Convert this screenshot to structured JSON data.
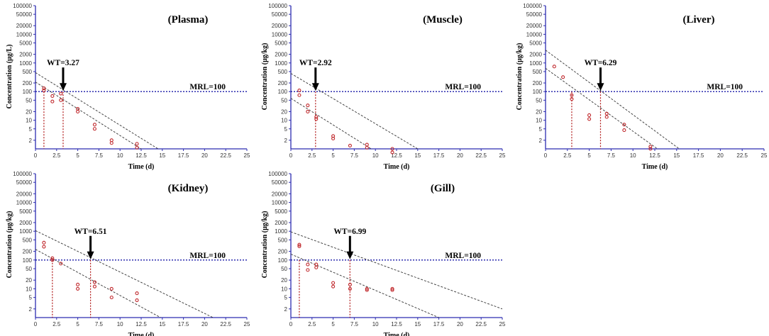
{
  "chart_data": [
    {
      "type": "scatter",
      "title": "(Plasma)",
      "xlabel": "Time (d)",
      "ylabel": "Concentration (μg/L)",
      "wt_label": "WT=3.27",
      "wt": 3.27,
      "mrl_label": "MRL=100",
      "mrl": 100,
      "t_start": 1,
      "points": [
        [
          1,
          130
        ],
        [
          1,
          110
        ],
        [
          2,
          70
        ],
        [
          2,
          45
        ],
        [
          3,
          85
        ],
        [
          3,
          50
        ],
        [
          5,
          25
        ],
        [
          5,
          20
        ],
        [
          7,
          7
        ],
        [
          7,
          5
        ],
        [
          9,
          2
        ],
        [
          9,
          1.6
        ],
        [
          12,
          1.5
        ],
        [
          12,
          1.1
        ]
      ],
      "lines": [
        [
          [
            0,
            460
          ],
          [
            14.5,
            1
          ]
        ],
        [
          [
            0,
            215
          ],
          [
            12.5,
            1
          ]
        ]
      ]
    },
    {
      "type": "scatter",
      "title": "(Muscle)",
      "xlabel": "Time (d)",
      "ylabel": "Concentration (μg/kg)",
      "wt_label": "WT=2.92",
      "wt": 2.92,
      "mrl_label": "MRL=100",
      "mrl": 100,
      "t_start": null,
      "points": [
        [
          1,
          110
        ],
        [
          1,
          75
        ],
        [
          2,
          33
        ],
        [
          2,
          20
        ],
        [
          3,
          13
        ],
        [
          3,
          11
        ],
        [
          5,
          2.8
        ],
        [
          5,
          2.3
        ],
        [
          7,
          1.3
        ],
        [
          9,
          1.4
        ],
        [
          9,
          1.1
        ],
        [
          12,
          1.0
        ],
        [
          12,
          0.75
        ]
      ],
      "lines": [
        [
          [
            0,
            430
          ],
          [
            15,
            1
          ]
        ],
        [
          [
            0,
            58
          ],
          [
            9.5,
            1
          ]
        ]
      ]
    },
    {
      "type": "scatter",
      "title": "(Liver)",
      "xlabel": "Time (d)",
      "ylabel": "Concentration (μg/kg)",
      "wt_label": "WT=6.29",
      "wt": 6.29,
      "mrl_label": "MRL=100",
      "mrl": 100,
      "t_start": 3,
      "points": [
        [
          1,
          750
        ],
        [
          2,
          320
        ],
        [
          3,
          75
        ],
        [
          3,
          55
        ],
        [
          5,
          15
        ],
        [
          5,
          11
        ],
        [
          7,
          17
        ],
        [
          7,
          13
        ],
        [
          9,
          7
        ],
        [
          9,
          4.5
        ],
        [
          12,
          1.2
        ],
        [
          12,
          1.0
        ]
      ],
      "lines": [
        [
          [
            0,
            2800
          ],
          [
            15.3,
            1
          ]
        ],
        [
          [
            0,
            650
          ],
          [
            12.8,
            1
          ]
        ]
      ]
    },
    {
      "type": "scatter",
      "title": "(Kidney)",
      "xlabel": "Time (d)",
      "ylabel": "Concentration (μg/kg)",
      "wt_label": "WT=6.51",
      "wt": 6.51,
      "mrl_label": "MRL=100",
      "mrl": 100,
      "t_start": 2,
      "points": [
        [
          1,
          400
        ],
        [
          1,
          290
        ],
        [
          2,
          115
        ],
        [
          2,
          100
        ],
        [
          3,
          75
        ],
        [
          5,
          14
        ],
        [
          5,
          10
        ],
        [
          7,
          17
        ],
        [
          7,
          12
        ],
        [
          9,
          10
        ],
        [
          9,
          5
        ],
        [
          12,
          7
        ],
        [
          12,
          4
        ]
      ],
      "lines": [
        [
          [
            0,
            1050
          ],
          [
            21,
            1
          ]
        ],
        [
          [
            0,
            235
          ],
          [
            14.8,
            1
          ]
        ]
      ]
    },
    {
      "type": "scatter",
      "title": "(Gill)",
      "xlabel": "Time (d)",
      "ylabel": "Concentration (μg/kg)",
      "wt_label": "WT=6.99",
      "wt": 6.99,
      "mrl_label": "MRL=100",
      "mrl": 100,
      "t_start": 1,
      "points": [
        [
          1,
          340
        ],
        [
          1,
          300
        ],
        [
          2,
          70
        ],
        [
          2,
          45
        ],
        [
          3,
          70
        ],
        [
          3,
          55
        ],
        [
          5,
          16
        ],
        [
          5,
          12
        ],
        [
          7,
          14
        ],
        [
          7,
          10
        ],
        [
          9,
          10
        ],
        [
          9,
          9
        ],
        [
          12,
          10
        ],
        [
          12,
          9
        ]
      ],
      "lines": [
        [
          [
            0,
            950
          ],
          [
            25,
            2
          ]
        ],
        [
          [
            0,
            160
          ],
          [
            17.5,
            1
          ]
        ]
      ]
    }
  ],
  "axes": {
    "xlim": [
      0,
      25
    ],
    "ylim_log": [
      1,
      100000
    ],
    "x_ticks": [
      "0",
      "2.5",
      "5",
      "7.5",
      "10",
      "12.5",
      "15",
      "17.5",
      "20",
      "22.5",
      "25"
    ],
    "y_ticks": [
      "100000",
      "50000",
      "20000",
      "10000",
      "5000",
      "2000",
      "1000",
      "500",
      "200",
      "100",
      "50",
      "20",
      "10",
      "5",
      "2"
    ],
    "y_tick_values": [
      100000,
      50000,
      20000,
      10000,
      5000,
      2000,
      1000,
      500,
      200,
      100,
      50,
      20,
      10,
      5,
      2
    ]
  },
  "colors": {
    "axis": "#2c2cb0",
    "mrl": "#1a1aa8",
    "point": "#c0282c",
    "wt_drop": "#b01818",
    "regression": "#333333",
    "arrow": "#000000"
  }
}
